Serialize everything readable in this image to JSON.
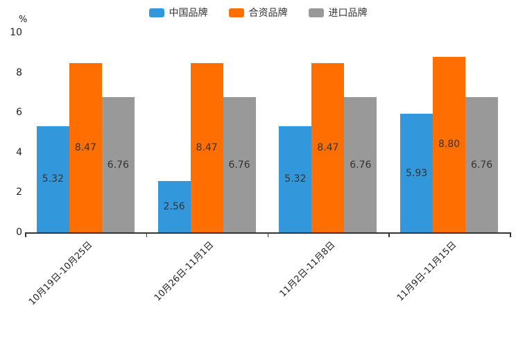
{
  "chart_data": {
    "type": "bar",
    "title": "",
    "unit_label": "%",
    "categories": [
      "10月19日-10月25日",
      "10月26日-11月1日",
      "11月2日-11月8日",
      "11月9日-11月15日"
    ],
    "series": [
      {
        "name": "中国品牌",
        "color": "#3398DB",
        "values": [
          5.32,
          2.56,
          5.32,
          5.93
        ]
      },
      {
        "name": "合资品牌",
        "color": "#FF6E00",
        "values": [
          8.47,
          8.47,
          8.47,
          8.8
        ]
      },
      {
        "name": "进口品牌",
        "color": "#999999",
        "values": [
          6.76,
          6.76,
          6.76,
          6.76
        ]
      }
    ],
    "y_ticks": [
      "0",
      "2",
      "4",
      "6",
      "8",
      "10"
    ],
    "ylim": [
      0,
      10
    ],
    "value_label_decimals": 2,
    "legend_position": "top-center",
    "grid": false,
    "colors": {
      "axis": "#333333",
      "tick_label": "#222222",
      "value_label": "#333333",
      "background": "#ffffff"
    }
  }
}
